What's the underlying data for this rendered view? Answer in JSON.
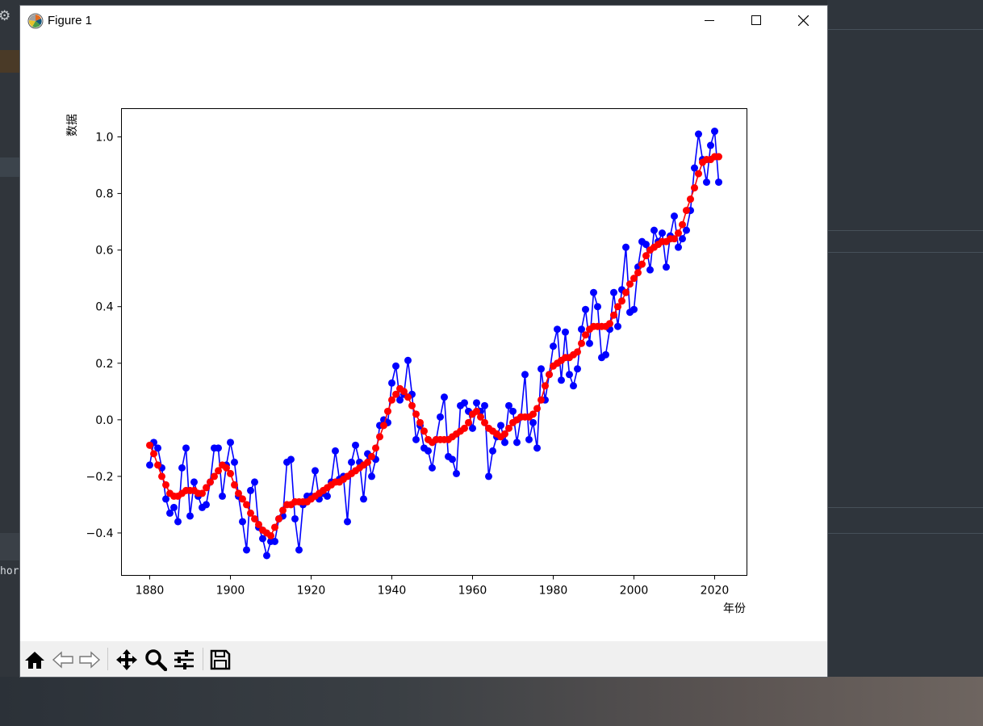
{
  "window": {
    "title": "Figure 1",
    "controls": {
      "minimize": "minimize",
      "maximize": "maximize",
      "close": "close"
    }
  },
  "desktop": {
    "side_text": "hor"
  },
  "toolbar": {
    "buttons": [
      "home-icon",
      "back-icon",
      "forward-icon",
      "pan-icon",
      "zoom-icon",
      "configure-subplots-icon",
      "save-icon"
    ]
  },
  "colors": {
    "series1": "#0000ff",
    "series2": "#ff0000",
    "window_bg": "#ffffff",
    "toolbar_bg": "#f0f0f0"
  },
  "chart_data": {
    "type": "line",
    "title": "",
    "xlabel": "年份",
    "ylabel": "数据",
    "xlim": [
      1873,
      2028
    ],
    "ylim": [
      -0.55,
      1.1
    ],
    "xticks": [
      1880,
      1900,
      1920,
      1940,
      1960,
      1980,
      2000,
      2020
    ],
    "yticks": [
      -0.4,
      -0.2,
      0.0,
      0.2,
      0.4,
      0.6,
      0.8,
      1.0
    ],
    "ytick_labels": [
      "−0.4",
      "−0.2",
      "0.0",
      "0.2",
      "0.4",
      "0.6",
      "0.8",
      "1.0"
    ],
    "grid": false,
    "legend": "none",
    "x_start": 1880,
    "x_end": 2021,
    "series": [
      {
        "color": "#0000ff",
        "marker": "circle",
        "values": [
          -0.16,
          -0.08,
          -0.1,
          -0.17,
          -0.28,
          -0.33,
          -0.31,
          -0.36,
          -0.17,
          -0.1,
          -0.34,
          -0.22,
          -0.27,
          -0.31,
          -0.3,
          -0.22,
          -0.1,
          -0.1,
          -0.27,
          -0.16,
          -0.08,
          -0.15,
          -0.27,
          -0.36,
          -0.46,
          -0.25,
          -0.22,
          -0.38,
          -0.42,
          -0.48,
          -0.43,
          -0.43,
          -0.35,
          -0.34,
          -0.15,
          -0.14,
          -0.35,
          -0.46,
          -0.3,
          -0.27,
          -0.27,
          -0.18,
          -0.28,
          -0.26,
          -0.27,
          -0.22,
          -0.11,
          -0.21,
          -0.2,
          -0.36,
          -0.15,
          -0.09,
          -0.15,
          -0.28,
          -0.12,
          -0.2,
          -0.14,
          -0.02,
          0.0,
          -0.01,
          0.13,
          0.19,
          0.07,
          0.09,
          0.21,
          0.09,
          -0.07,
          -0.02,
          -0.1,
          -0.11,
          -0.17,
          -0.07,
          0.01,
          0.08,
          -0.13,
          -0.14,
          -0.19,
          0.05,
          0.06,
          0.03,
          -0.03,
          0.06,
          0.03,
          0.05,
          -0.2,
          -0.11,
          -0.06,
          -0.02,
          -0.08,
          0.05,
          0.03,
          -0.08,
          0.01,
          0.16,
          -0.07,
          -0.01,
          -0.1,
          0.18,
          0.07,
          0.16,
          0.26,
          0.32,
          0.14,
          0.31,
          0.16,
          0.12,
          0.18,
          0.32,
          0.39,
          0.27,
          0.45,
          0.4,
          0.22,
          0.23,
          0.32,
          0.45,
          0.33,
          0.46,
          0.61,
          0.38,
          0.39,
          0.54,
          0.63,
          0.62,
          0.53,
          0.67,
          0.63,
          0.66,
          0.54,
          0.65,
          0.72,
          0.61,
          0.64,
          0.67,
          0.74,
          0.89,
          1.01,
          0.92,
          0.84,
          0.97,
          1.02,
          0.84
        ]
      },
      {
        "color": "#ff0000",
        "marker": "circle",
        "values": [
          -0.09,
          -0.12,
          -0.16,
          -0.2,
          -0.23,
          -0.26,
          -0.27,
          -0.27,
          -0.26,
          -0.25,
          -0.25,
          -0.25,
          -0.26,
          -0.26,
          -0.24,
          -0.22,
          -0.2,
          -0.18,
          -0.16,
          -0.17,
          -0.19,
          -0.23,
          -0.26,
          -0.28,
          -0.3,
          -0.33,
          -0.35,
          -0.37,
          -0.39,
          -0.4,
          -0.41,
          -0.38,
          -0.35,
          -0.32,
          -0.3,
          -0.3,
          -0.29,
          -0.29,
          -0.29,
          -0.29,
          -0.28,
          -0.27,
          -0.26,
          -0.25,
          -0.24,
          -0.23,
          -0.22,
          -0.22,
          -0.21,
          -0.2,
          -0.19,
          -0.18,
          -0.17,
          -0.16,
          -0.15,
          -0.13,
          -0.1,
          -0.06,
          -0.02,
          0.03,
          0.07,
          0.09,
          0.11,
          0.1,
          0.08,
          0.05,
          0.02,
          -0.01,
          -0.04,
          -0.07,
          -0.08,
          -0.07,
          -0.07,
          -0.07,
          -0.07,
          -0.06,
          -0.05,
          -0.04,
          -0.03,
          -0.01,
          0.02,
          0.03,
          0.01,
          -0.01,
          -0.03,
          -0.04,
          -0.05,
          -0.06,
          -0.05,
          -0.03,
          -0.01,
          0.0,
          0.01,
          0.01,
          0.01,
          0.02,
          0.04,
          0.07,
          0.12,
          0.16,
          0.19,
          0.2,
          0.21,
          0.22,
          0.22,
          0.23,
          0.24,
          0.27,
          0.3,
          0.32,
          0.33,
          0.33,
          0.33,
          0.33,
          0.34,
          0.37,
          0.4,
          0.42,
          0.45,
          0.48,
          0.5,
          0.52,
          0.55,
          0.58,
          0.6,
          0.61,
          0.62,
          0.63,
          0.63,
          0.64,
          0.64,
          0.66,
          0.69,
          0.74,
          0.78,
          0.82,
          0.87,
          0.91,
          0.92,
          0.92,
          0.93,
          0.93
        ]
      }
    ]
  }
}
